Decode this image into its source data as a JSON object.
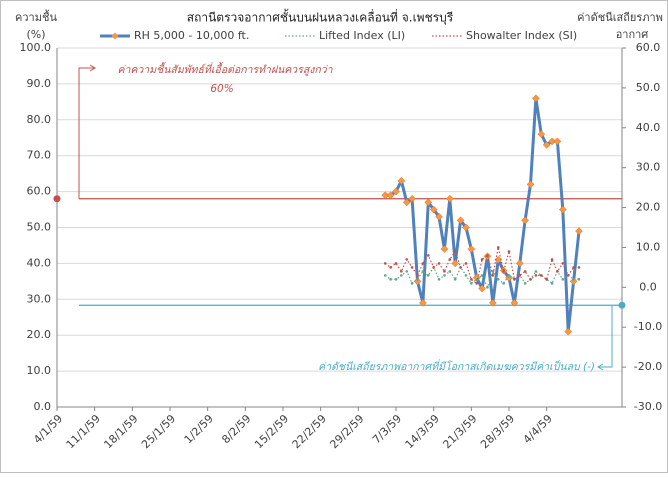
{
  "chart_data": {
    "type": "line",
    "title": "สถานีตรวจอากาศชั้นบนฝนหลวงเคลื่อนที่  จ.เพชรบุรี",
    "y_label": [
      "ความชื้น",
      "(%)"
    ],
    "y2_label": [
      "ค่าดัชนีเสถียรภาพ",
      "อากาศ"
    ],
    "x": [
      "5/3/59",
      "6/3/59",
      "7/3/59",
      "8/3/59",
      "9/3/59",
      "10/3/59",
      "11/3/59",
      "12/3/59",
      "13/3/59",
      "14/3/59",
      "15/3/59",
      "16/3/59",
      "17/3/59",
      "18/3/59",
      "19/3/59",
      "20/3/59",
      "21/3/59",
      "22/3/59",
      "23/3/59",
      "24/3/59",
      "25/3/59",
      "26/3/59",
      "27/3/59",
      "28/3/59",
      "29/3/59",
      "30/3/59",
      "31/3/59",
      "1/4/59",
      "2/4/59",
      "3/4/59",
      "4/4/59",
      "5/4/59",
      "6/4/59",
      "7/4/59",
      "8/4/59",
      "9/4/59",
      "10/4/59"
    ],
    "xlim": [
      "4/1/59",
      "18/4/59"
    ],
    "xticks": [
      "4/1/59",
      "11/1/59",
      "18/1/59",
      "25/1/59",
      "1/2/59",
      "8/2/59",
      "15/2/59",
      "22/2/59",
      "29/2/59",
      "7/3/59",
      "14/3/59",
      "21/3/59",
      "28/3/59",
      "4/4/59"
    ],
    "ylim": [
      0,
      100
    ],
    "yticks": [
      {
        "value": 0,
        "label": "0.0"
      },
      {
        "value": 10,
        "label": "10.0"
      },
      {
        "value": 20,
        "label": "20.0"
      },
      {
        "value": 30,
        "label": "30.0"
      },
      {
        "value": 40,
        "label": "40.0"
      },
      {
        "value": 50,
        "label": "50.0"
      },
      {
        "value": 60,
        "label": "60.0"
      },
      {
        "value": 70,
        "label": "70.0"
      },
      {
        "value": 80,
        "label": "80.0"
      },
      {
        "value": 90,
        "label": "90.0"
      },
      {
        "value": 100,
        "label": "100.0"
      }
    ],
    "y2lim": [
      -30,
      60
    ],
    "y2ticks": [
      {
        "value": -30,
        "label": "-30.0"
      },
      {
        "value": -20,
        "label": "-20.0"
      },
      {
        "value": -10,
        "label": "-10.0"
      },
      {
        "value": 0,
        "label": "0.0"
      },
      {
        "value": 10,
        "label": "10.0"
      },
      {
        "value": 20,
        "label": "20.0"
      },
      {
        "value": 30,
        "label": "30.0"
      },
      {
        "value": 40,
        "label": "40.0"
      },
      {
        "value": 50,
        "label": "50.0"
      },
      {
        "value": 60,
        "label": "60.0"
      }
    ],
    "grid": true,
    "series": [
      {
        "name": "RH 5,000 - 10,000 ft.",
        "color": "#4f81bd",
        "marker_color": "#f79646",
        "style": "solid",
        "values": [
          59,
          59,
          60,
          63,
          57,
          58,
          35,
          29,
          57,
          55,
          53,
          44,
          58,
          40,
          52,
          50,
          44,
          36,
          33,
          42,
          29,
          41,
          38,
          36,
          29,
          40,
          52,
          62,
          86,
          76,
          73,
          74,
          74,
          55,
          21,
          35,
          49
        ]
      },
      {
        "name": "Lifted Index (LI)",
        "color": "#5fa88a",
        "style": "dotted",
        "axis": "y2",
        "values": [
          3,
          2,
          2,
          3,
          4,
          1,
          2,
          4,
          3,
          5,
          2,
          3,
          4,
          2,
          5,
          3,
          1,
          2,
          3,
          0,
          4,
          2,
          1,
          3,
          2,
          3,
          1,
          2,
          4,
          3,
          2,
          1,
          4,
          2,
          3,
          2,
          2
        ]
      },
      {
        "name": "Showalter Index (SI)",
        "color": "#c0504d",
        "style": "dotted",
        "axis": "y2",
        "values": [
          6,
          5,
          6,
          4,
          7,
          5,
          3,
          6,
          8,
          5,
          6,
          4,
          7,
          9,
          5,
          6,
          2,
          1,
          7,
          8,
          3,
          10,
          4,
          9,
          2,
          3,
          4,
          2,
          3,
          3,
          2,
          7,
          4,
          6,
          3,
          5,
          5
        ]
      }
    ],
    "reference_lines": [
      {
        "value": 58,
        "color": "#c0504d",
        "label": [
          "ค่าความชื้นสัมพัทธ์ที่เอื้อต่อการทำฝนควรสูงกว่า",
          "60%"
        ]
      },
      {
        "value": -4.5,
        "axis": "y2",
        "color": "#4bacc6",
        "label": [
          "ค่าดัชนีเสถียรภาพอากาศที่มีโอกาสเกิดเมฆควรมีค่าเป็นลบ (-)"
        ]
      }
    ]
  }
}
